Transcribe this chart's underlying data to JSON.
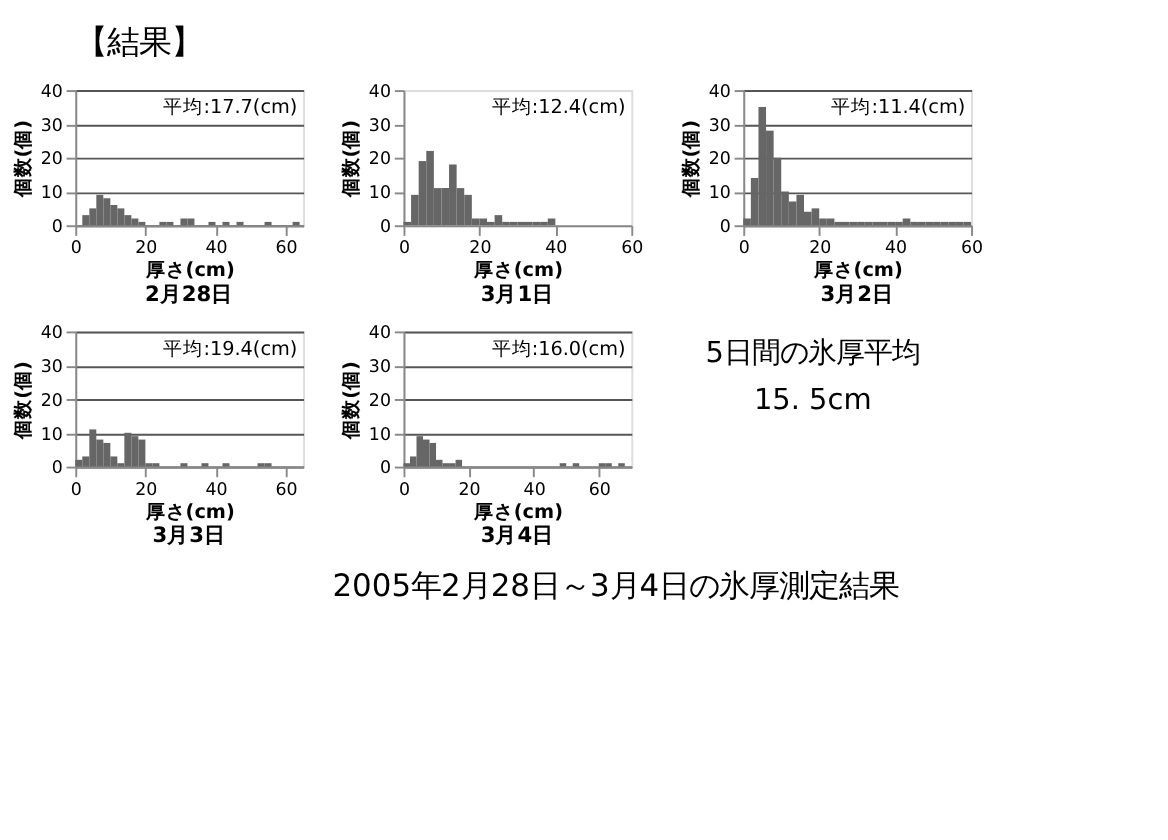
{
  "chart_data": [
    {
      "type": "histogram",
      "title": "2月28日",
      "xlabel": "厚さ(cm)",
      "ylabel": "個数(個)",
      "color": "#666666",
      "annotations": [
        "平均:17.7(cm)"
      ],
      "bins": [
        0,
        2,
        4,
        6,
        8,
        10,
        12,
        14,
        16,
        18,
        20,
        22,
        24,
        26,
        28,
        30,
        32,
        34,
        36,
        38,
        40,
        42,
        44,
        46,
        48,
        50,
        52,
        54,
        56,
        58,
        60,
        62,
        64
      ],
      "values": [
        0,
        3,
        5,
        9,
        8,
        6,
        5,
        3,
        2,
        1,
        0,
        0,
        1,
        1,
        0,
        2,
        2,
        0,
        0,
        1,
        0,
        1,
        0,
        1,
        0,
        0,
        0,
        1,
        0,
        0,
        0,
        1
      ],
      "xlim": [
        0,
        65
      ],
      "xticks": [
        0,
        20,
        40,
        60
      ],
      "ylim": [
        0,
        40
      ],
      "yticks": [
        0,
        10,
        20,
        30,
        40
      ],
      "grid": "y"
    },
    {
      "type": "histogram",
      "title": "3月1日",
      "xlabel": "厚さ(cm)",
      "ylabel": "個数(個)",
      "color": "#666666",
      "annotations": [
        "平均:12.4(cm)"
      ],
      "bins": [
        0,
        2,
        4,
        6,
        8,
        10,
        12,
        14,
        16,
        18,
        20,
        22,
        24,
        26,
        28,
        30,
        32,
        34,
        36,
        38,
        40
      ],
      "values": [
        1,
        9,
        19,
        22,
        11,
        11,
        18,
        11,
        9,
        2,
        2,
        1,
        3,
        1,
        1,
        1,
        1,
        1,
        1,
        2
      ],
      "xlim": [
        0,
        60
      ],
      "xticks": [
        0,
        20,
        40,
        60
      ],
      "ylim": [
        0,
        40
      ],
      "yticks": [
        0,
        10,
        20,
        30,
        40
      ]
    },
    {
      "type": "histogram",
      "title": "3月2日",
      "xlabel": "厚さ(cm)",
      "ylabel": "個数(個)",
      "color": "#666666",
      "annotations": [
        "平均:11.4(cm)"
      ],
      "bins": [
        0,
        2,
        4,
        6,
        8,
        10,
        12,
        14,
        16,
        18,
        20,
        22,
        24,
        26,
        28,
        30,
        32,
        34,
        36,
        38,
        40,
        42,
        44,
        46,
        48,
        50,
        52,
        54,
        56,
        58,
        60
      ],
      "values": [
        2,
        14,
        35,
        28,
        20,
        10,
        7,
        9,
        4,
        5,
        2,
        2,
        1,
        1,
        1,
        1,
        1,
        1,
        1,
        1,
        1,
        2,
        1,
        1,
        1,
        1,
        1,
        1,
        1,
        1
      ],
      "xlim": [
        0,
        60
      ],
      "xticks": [
        0,
        20,
        40,
        60
      ],
      "ylim": [
        0,
        40
      ],
      "yticks": [
        0,
        10,
        20,
        30,
        40
      ],
      "grid": "y"
    },
    {
      "type": "histogram",
      "title": "3月3日",
      "xlabel": "厚さ(cm)",
      "ylabel": "個数(個)",
      "color": "#666666",
      "annotations": [
        "平均:19.4(cm)"
      ],
      "bins": [
        0,
        2,
        4,
        6,
        8,
        10,
        12,
        14,
        16,
        18,
        20,
        22,
        24,
        26,
        28,
        30,
        32,
        34,
        36,
        38,
        40,
        42,
        44,
        46,
        48,
        50,
        52,
        54,
        56,
        58,
        60,
        62,
        64
      ],
      "values": [
        2,
        3,
        11,
        8,
        7,
        3,
        1,
        10,
        9,
        8,
        1,
        1,
        0,
        0,
        0,
        1,
        0,
        0,
        1,
        0,
        0,
        1,
        0,
        0,
        0,
        0,
        1,
        1,
        0,
        0,
        0,
        0
      ],
      "xlim": [
        0,
        65
      ],
      "xticks": [
        0,
        20,
        40,
        60
      ],
      "ylim": [
        0,
        40
      ],
      "yticks": [
        0,
        10,
        20,
        30,
        40
      ],
      "grid": "y"
    },
    {
      "type": "histogram",
      "title": "3月4日",
      "xlabel": "厚さ(cm)",
      "ylabel": "個数(個)",
      "color": "#666666",
      "annotations": [
        "平均:16.0(cm)"
      ],
      "bins": [
        0,
        2,
        4,
        6,
        8,
        10,
        12,
        14,
        16,
        18,
        20,
        22,
        24,
        26,
        28,
        30,
        32,
        34,
        36,
        38,
        40,
        42,
        44,
        46,
        48,
        50,
        52,
        54,
        56,
        58,
        60,
        62,
        64,
        66,
        68,
        70
      ],
      "values": [
        1,
        3,
        9,
        8,
        7,
        2,
        1,
        1,
        2,
        0,
        0,
        0,
        0,
        0,
        0,
        0,
        0,
        0,
        0,
        0,
        0,
        0,
        0,
        0,
        1,
        0,
        1,
        0,
        0,
        0,
        1,
        1,
        0,
        1,
        0
      ],
      "xlim": [
        0,
        70
      ],
      "xticks": [
        0,
        20,
        40,
        60
      ],
      "ylim": [
        0,
        40
      ],
      "yticks": [
        0,
        10,
        20,
        30,
        40
      ],
      "grid": "y"
    },
    {
      "type": "other",
      "title": "【結果】",
      "annotations": [
        "5日間の氷厚平均",
        "15. 5cm",
        "2005年2月28日～3月4日の氷厚測定結果"
      ]
    }
  ]
}
